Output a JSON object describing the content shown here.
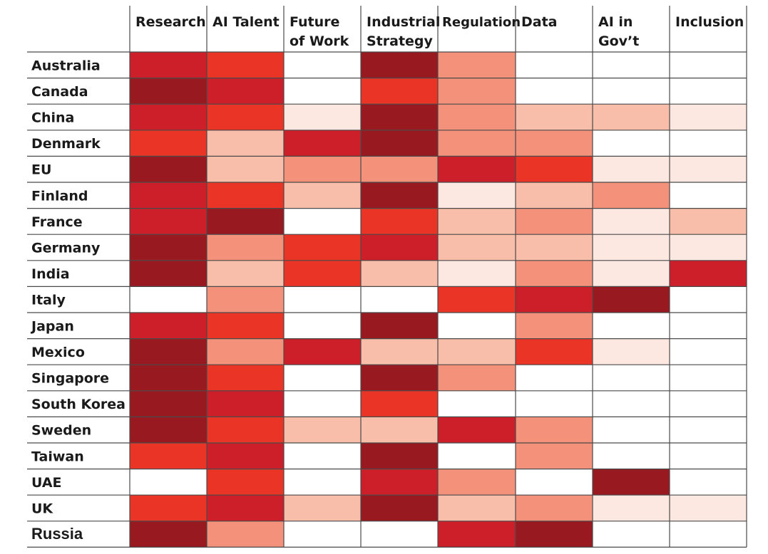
{
  "chart_data": {
    "type": "heatmap",
    "columns": [
      "Research",
      "AI Talent",
      "Future|of Work",
      "Industrial|Strategy",
      "Regulation",
      "Data",
      "AI in|Gov’t",
      "Inclusion"
    ],
    "rows": [
      "Australia",
      "Canada",
      "China",
      "Denmark",
      "EU",
      "Finland",
      "France",
      "Germany",
      "India",
      "Italy",
      "Japan",
      "Mexico",
      "Singapore",
      "South Korea",
      "Sweden",
      "Taiwan",
      "UAE",
      "UK",
      "Russia"
    ],
    "levels": [
      [
        5,
        4,
        0,
        6,
        3,
        0,
        0,
        0
      ],
      [
        6,
        5,
        0,
        4,
        3,
        0,
        0,
        0
      ],
      [
        5,
        4,
        1,
        6,
        3,
        2,
        2,
        1
      ],
      [
        4,
        2,
        5,
        6,
        3,
        3,
        0,
        0
      ],
      [
        6,
        2,
        3,
        3,
        5,
        4,
        1,
        1
      ],
      [
        5,
        4,
        2,
        6,
        1,
        2,
        3,
        0
      ],
      [
        5,
        6,
        0,
        4,
        2,
        3,
        1,
        2
      ],
      [
        6,
        3,
        4,
        5,
        2,
        2,
        1,
        1
      ],
      [
        6,
        2,
        4,
        2,
        1,
        3,
        1,
        5
      ],
      [
        0,
        3,
        0,
        0,
        4,
        5,
        6,
        0
      ],
      [
        5,
        4,
        0,
        6,
        0,
        3,
        0,
        0
      ],
      [
        6,
        3,
        5,
        2,
        2,
        4,
        1,
        0
      ],
      [
        6,
        4,
        0,
        6,
        3,
        0,
        0,
        0
      ],
      [
        6,
        5,
        0,
        4,
        0,
        0,
        0,
        0
      ],
      [
        6,
        4,
        2,
        2,
        5,
        3,
        0,
        0
      ],
      [
        4,
        5,
        0,
        6,
        0,
        3,
        0,
        0
      ],
      [
        0,
        4,
        0,
        5,
        3,
        0,
        6,
        0
      ],
      [
        4,
        5,
        2,
        6,
        2,
        3,
        1,
        1
      ],
      [
        6,
        3,
        0,
        0,
        5,
        6,
        0,
        0
      ]
    ],
    "palette": [
      "#ffffff",
      "#fde8e1",
      "#f8bea9",
      "#f3917a",
      "#ee6a52",
      "#ea3426",
      "#cc1f2a",
      "#981a20"
    ],
    "scale_note": "levels 0 (none) to 6 (darkest); palette index 7 used for level 6",
    "legend": "none",
    "grid": true
  }
}
